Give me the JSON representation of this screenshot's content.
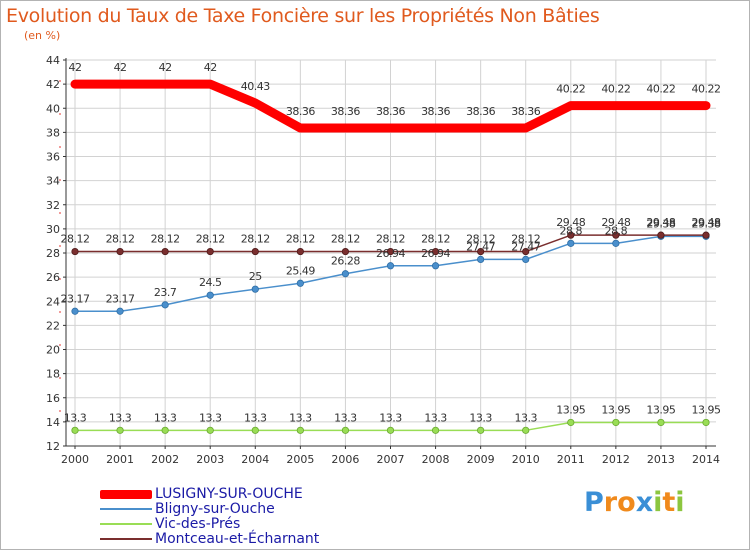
{
  "title": "Evolution du Taux de Taxe Foncière sur les Propriétés Non Bâties",
  "subtitle": "(en %)",
  "chart_data": {
    "type": "line",
    "title": "Evolution du Taux de Taxe Foncière sur les Propriétés Non Bâties",
    "ylabel": "(en %)",
    "xlabel": "",
    "x": [
      "2000",
      "2001",
      "2002",
      "2003",
      "2004",
      "2005",
      "2006",
      "2007",
      "2008",
      "2009",
      "2010",
      "2011",
      "2012",
      "2013",
      "2014"
    ],
    "ylim": [
      12,
      44
    ],
    "yticks": [
      "12",
      "14",
      "16",
      "18",
      "20",
      "22",
      "24",
      "26",
      "28",
      "30",
      "32",
      "34",
      "36",
      "38",
      "40",
      "42",
      "44"
    ],
    "grid": true,
    "series": [
      {
        "name": "LUSIGNY-SUR-OUCHE",
        "color": "#ff0000",
        "values": [
          42,
          42,
          42,
          42,
          40.43,
          38.36,
          38.36,
          38.36,
          38.36,
          38.36,
          38.36,
          40.22,
          40.22,
          40.22,
          40.22
        ],
        "labels": [
          "42",
          "42",
          "42",
          "42",
          "40.43",
          "38.36",
          "38.36",
          "38.36",
          "38.36",
          "38.36",
          "38.36",
          "40.22",
          "40.22",
          "40.22",
          "40.22"
        ]
      },
      {
        "name": "Bligny-sur-Ouche",
        "color": "#4a8fcc",
        "values": [
          23.17,
          23.17,
          23.7,
          24.5,
          25,
          25.49,
          26.28,
          26.94,
          26.94,
          27.47,
          27.47,
          28.8,
          28.8,
          29.38,
          29.38
        ],
        "labels": [
          "23.17",
          "23.17",
          "23.7",
          "24.5",
          "25",
          "25.49",
          "26.28",
          "26.94",
          "26.94",
          "27.47",
          "27.47",
          "28.8",
          "28.8",
          "29.38",
          "29.38"
        ]
      },
      {
        "name": "Vic-des-Prés",
        "color": "#99dd55",
        "values": [
          13.3,
          13.3,
          13.3,
          13.3,
          13.3,
          13.3,
          13.3,
          13.3,
          13.3,
          13.3,
          13.3,
          13.95,
          13.95,
          13.95,
          13.95
        ],
        "labels": [
          "13.3",
          "13.3",
          "13.3",
          "13.3",
          "13.3",
          "13.3",
          "13.3",
          "13.3",
          "13.3",
          "13.3",
          "13.3",
          "13.95",
          "13.95",
          "13.95",
          "13.95"
        ]
      },
      {
        "name": "Montceau-et-Écharnant",
        "color": "#7a2e2e",
        "values": [
          28.12,
          28.12,
          28.12,
          28.12,
          28.12,
          28.12,
          28.12,
          28.12,
          28.12,
          28.12,
          28.12,
          29.48,
          29.48,
          29.48,
          29.48
        ],
        "labels": [
          "28.12",
          "28.12",
          "28.12",
          "28.12",
          "28.12",
          "28.12",
          "28.12",
          "28.12",
          "28.12",
          "28.12",
          "28.12",
          "29.48",
          "29.48",
          "29.48",
          "29.48"
        ]
      }
    ]
  },
  "legend": [
    {
      "label": "LUSIGNY-SUR-OUCHE",
      "color": "#ff0000"
    },
    {
      "label": "Bligny-sur-Ouche",
      "color": "#4a8fcc"
    },
    {
      "label": "Vic-des-Prés",
      "color": "#99dd55"
    },
    {
      "label": "Montceau-et-Écharnant",
      "color": "#7a2e2e"
    }
  ],
  "logo": {
    "letters": [
      "P",
      "r",
      "o",
      "x",
      "i",
      "t",
      "i"
    ],
    "colors": [
      "#3a8fd6",
      "#f08a1c",
      "#f08a1c",
      "#3a8fd6",
      "#8cc63f",
      "#f08a1c",
      "#8cc63f"
    ]
  }
}
